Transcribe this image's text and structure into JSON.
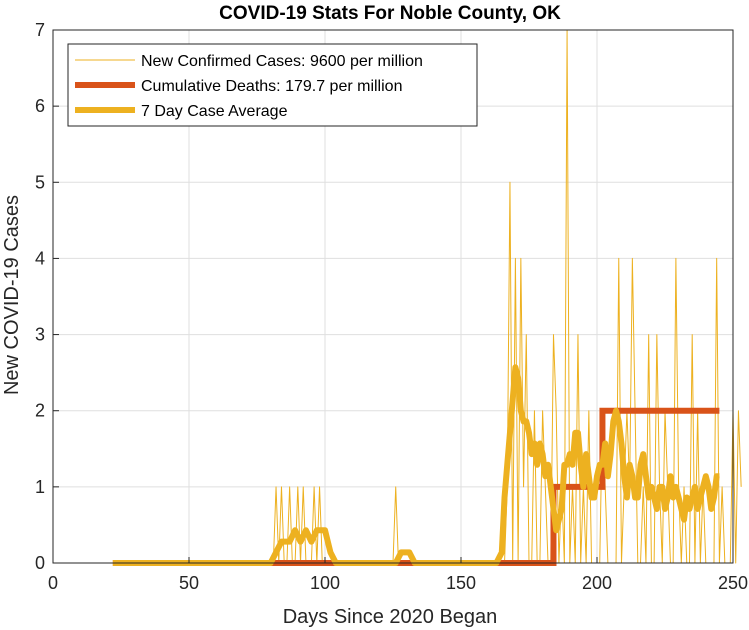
{
  "chart_data": {
    "type": "line",
    "title": "COVID-19 Stats For Noble County, OK",
    "xlabel": "Days Since 2020 Began",
    "ylabel": "New COVID-19 Cases",
    "xlim": [
      0,
      250
    ],
    "ylim": [
      0,
      7
    ],
    "xticks": [
      0,
      50,
      100,
      150,
      200,
      250
    ],
    "yticks": [
      0,
      1,
      2,
      3,
      4,
      5,
      6,
      7
    ],
    "grid": true,
    "legend_position": "top-left",
    "colors": {
      "new_cases": "#EDB120",
      "deaths": "#D95319",
      "average": "#EDB120",
      "grid": "#dfdfdf",
      "axis": "#262626"
    },
    "series": [
      {
        "name": "New Confirmed Cases: 9600 per million",
        "style": "thin",
        "x_start": 22,
        "values": [
          0,
          0,
          0,
          0,
          0,
          0,
          0,
          0,
          0,
          0,
          0,
          0,
          0,
          0,
          0,
          0,
          0,
          0,
          0,
          0,
          0,
          0,
          0,
          0,
          0,
          0,
          0,
          0,
          0,
          0,
          0,
          0,
          0,
          0,
          0,
          0,
          0,
          0,
          0,
          0,
          0,
          0,
          0,
          0,
          0,
          0,
          0,
          0,
          0,
          0,
          0,
          0,
          0,
          0,
          0,
          0,
          0,
          0,
          0,
          0,
          1,
          0,
          1,
          0,
          0,
          1,
          0,
          0,
          1,
          0,
          1,
          0,
          0,
          0,
          1,
          0,
          1,
          0,
          0,
          0,
          0,
          0,
          0,
          0,
          0,
          0,
          0,
          0,
          0,
          0,
          0,
          0,
          0,
          0,
          0,
          0,
          0,
          0,
          0,
          0,
          0,
          0,
          0,
          0,
          1,
          0,
          0,
          0,
          0,
          0,
          0,
          0,
          0,
          0,
          0,
          0,
          0,
          0,
          0,
          0,
          0,
          0,
          0,
          0,
          0,
          0,
          0,
          0,
          0,
          0,
          0,
          0,
          0,
          0,
          0,
          0,
          0,
          0,
          0,
          0,
          0,
          0,
          0,
          0,
          0,
          1,
          5,
          0,
          4,
          0,
          4,
          1,
          3,
          0,
          0,
          2,
          0,
          0,
          2,
          1,
          0,
          0,
          3,
          2,
          0,
          1,
          0,
          7,
          0,
          1,
          0,
          3,
          0,
          1,
          0,
          2,
          0,
          0,
          0,
          0,
          2,
          1,
          0,
          0,
          0,
          0,
          4,
          0,
          1,
          2,
          1,
          4,
          2,
          0,
          0,
          1,
          0,
          3,
          0,
          0,
          3,
          1,
          0,
          2,
          1,
          0,
          0,
          4,
          1,
          0,
          1,
          0,
          0,
          3,
          0,
          2,
          0,
          1,
          0,
          0,
          0,
          0,
          4,
          0,
          1,
          0,
          0,
          0,
          2,
          0,
          2,
          1
        ]
      },
      {
        "name": "Cumulative Deaths: 179.7 per million",
        "style": "thick",
        "x_start": 22,
        "steps": [
          [
            22,
            0
          ],
          [
            184,
            1
          ],
          [
            202,
            2
          ],
          [
            245,
            2
          ]
        ]
      },
      {
        "name": "7 Day Case Average",
        "style": "thick",
        "x_start": 22,
        "points": [
          [
            22,
            0
          ],
          [
            80,
            0
          ],
          [
            82,
            0.14
          ],
          [
            84,
            0.28
          ],
          [
            87,
            0.28
          ],
          [
            89,
            0.43
          ],
          [
            91,
            0.28
          ],
          [
            93,
            0.43
          ],
          [
            95,
            0.28
          ],
          [
            97,
            0.43
          ],
          [
            100,
            0.43
          ],
          [
            102,
            0.14
          ],
          [
            104,
            0
          ],
          [
            126,
            0
          ],
          [
            128,
            0.14
          ],
          [
            131,
            0.14
          ],
          [
            133,
            0
          ],
          [
            163,
            0
          ],
          [
            165,
            0.14
          ],
          [
            166,
            0.86
          ],
          [
            167,
            1.29
          ],
          [
            168,
            1.71
          ],
          [
            169,
            2.14
          ],
          [
            170,
            2.57
          ],
          [
            171,
            2.43
          ],
          [
            172,
            2.0
          ],
          [
            173,
            1.86
          ],
          [
            174,
            1.86
          ],
          [
            175,
            1.71
          ],
          [
            176,
            1.43
          ],
          [
            177,
            1.57
          ],
          [
            178,
            1.29
          ],
          [
            179,
            1.57
          ],
          [
            180,
            1.43
          ],
          [
            181,
            1.14
          ],
          [
            182,
            1.29
          ],
          [
            183,
            1.0
          ],
          [
            184,
            0.71
          ],
          [
            185,
            0.43
          ],
          [
            186,
            0.57
          ],
          [
            187,
            0.71
          ],
          [
            188,
            1.29
          ],
          [
            189,
            1.29
          ],
          [
            190,
            1.43
          ],
          [
            191,
            1.29
          ],
          [
            192,
            1.71
          ],
          [
            193,
            1.71
          ],
          [
            194,
            1.29
          ],
          [
            195,
            1.0
          ],
          [
            196,
            1.43
          ],
          [
            197,
            1.14
          ],
          [
            198,
            0.86
          ],
          [
            199,
            0.86
          ],
          [
            200,
            1.14
          ],
          [
            201,
            1.29
          ],
          [
            202,
            1.29
          ],
          [
            203,
            1.57
          ],
          [
            204,
            1.14
          ],
          [
            205,
            1.43
          ],
          [
            206,
            1.86
          ],
          [
            207,
            2.0
          ],
          [
            208,
            1.86
          ],
          [
            209,
            1.57
          ],
          [
            210,
            1.14
          ],
          [
            211,
            0.86
          ],
          [
            212,
            1.29
          ],
          [
            213,
            1.14
          ],
          [
            214,
            0.86
          ],
          [
            215,
            0.86
          ],
          [
            216,
            1.29
          ],
          [
            217,
            1.43
          ],
          [
            218,
            1.14
          ],
          [
            219,
            0.86
          ],
          [
            220,
            1.0
          ],
          [
            221,
            0.86
          ],
          [
            222,
            0.71
          ],
          [
            223,
            1.0
          ],
          [
            224,
            1.0
          ],
          [
            225,
            0.71
          ],
          [
            226,
            0.86
          ],
          [
            227,
            1.14
          ],
          [
            228,
            0.86
          ],
          [
            229,
            1.0
          ],
          [
            230,
            0.86
          ],
          [
            231,
            0.71
          ],
          [
            232,
            0.57
          ],
          [
            233,
            0.86
          ],
          [
            234,
            0.71
          ],
          [
            235,
            0.86
          ],
          [
            236,
            1.0
          ],
          [
            237,
            0.71
          ],
          [
            238,
            0.86
          ],
          [
            239,
            1.0
          ],
          [
            240,
            1.14
          ],
          [
            241,
            1.0
          ],
          [
            242,
            0.71
          ],
          [
            243,
            0.86
          ],
          [
            244,
            1.14
          ],
          [
            245,
            1.14
          ]
        ]
      }
    ]
  }
}
